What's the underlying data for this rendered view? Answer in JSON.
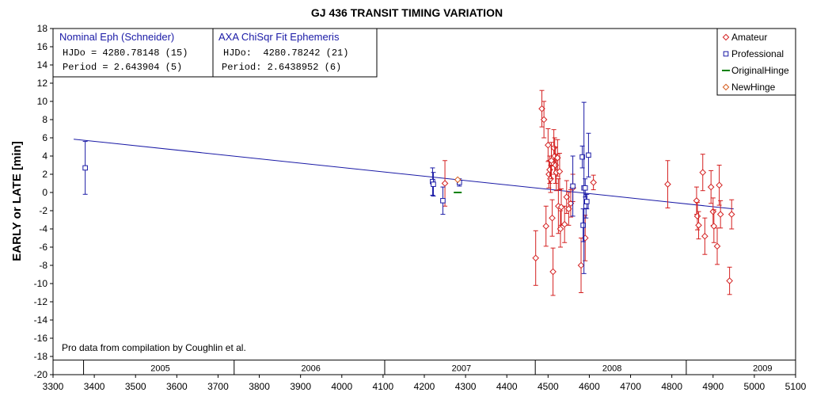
{
  "chart_data": {
    "type": "scatter",
    "title": "GJ 436 TRANSIT TIMING VARIATION",
    "ylabel": "EARLY or LATE [min]",
    "xlabel": "",
    "xlim": [
      3300,
      5100
    ],
    "ylim": [
      -20,
      18
    ],
    "x_ticks": [
      3300,
      3400,
      3500,
      3600,
      3700,
      3800,
      3900,
      4000,
      4100,
      4200,
      4300,
      4400,
      4500,
      4600,
      4700,
      4800,
      4900,
      5000,
      5100
    ],
    "y_ticks": [
      -20,
      -18,
      -16,
      -14,
      -12,
      -10,
      -8,
      -6,
      -4,
      -2,
      0,
      2,
      4,
      6,
      8,
      10,
      12,
      14,
      16,
      18
    ],
    "grid": false,
    "legend_position": "top-right",
    "ephemeris_boxes": [
      {
        "title": "Nominal Eph (Schneider)",
        "line1": "HJDo = 4280.78148 (15)",
        "line2": "Period = 2.643904 (5)"
      },
      {
        "title": "AXA ChiSqr Fit Ephemeris",
        "line1": "HJDo:  4280.78242 (21)",
        "line2": "Period: 2.6438952 (6)"
      }
    ],
    "note": "Pro data from compilation by Coughlin et al.",
    "year_strip": {
      "labels": [
        {
          "text": "2005",
          "x": 3560
        },
        {
          "text": "2006",
          "x": 3925
        },
        {
          "text": "2007",
          "x": 4290
        },
        {
          "text": "2008",
          "x": 4655
        },
        {
          "text": "2009",
          "x": 5020
        }
      ],
      "boundaries": [
        3374,
        3739,
        4104,
        4469,
        4835
      ]
    },
    "fit_line": {
      "name": "",
      "color": "#1a1aa6",
      "x": [
        3350,
        4950
      ],
      "y": [
        5.85,
        -1.8
      ]
    },
    "series": [
      {
        "name": "Amateur",
        "marker": "diamond",
        "color": "#d42020",
        "points": [
          {
            "x": 4250,
            "y": 1.0,
            "err": 2.5
          },
          {
            "x": 4470,
            "y": -7.2,
            "err": 3.0
          },
          {
            "x": 4485,
            "y": 9.2,
            "err": 2.0
          },
          {
            "x": 4490,
            "y": 8.0,
            "err": 2.0
          },
          {
            "x": 4495,
            "y": -3.7,
            "err": 2.2
          },
          {
            "x": 4500,
            "y": 5.2,
            "err": 1.8
          },
          {
            "x": 4502,
            "y": 2.0,
            "err": 1.5
          },
          {
            "x": 4504,
            "y": 2.5,
            "err": 1.5
          },
          {
            "x": 4506,
            "y": 1.5,
            "err": 1.5
          },
          {
            "x": 4508,
            "y": 3.5,
            "err": 2.0
          },
          {
            "x": 4510,
            "y": -2.8,
            "err": 2.0
          },
          {
            "x": 4512,
            "y": -8.7,
            "err": 2.6
          },
          {
            "x": 4514,
            "y": 4.9,
            "err": 2.0
          },
          {
            "x": 4516,
            "y": 4.0,
            "err": 2.0
          },
          {
            "x": 4518,
            "y": 3.0,
            "err": 2.0
          },
          {
            "x": 4520,
            "y": 2.2,
            "err": 2.0
          },
          {
            "x": 4523,
            "y": 3.8,
            "err": 2.0
          },
          {
            "x": 4525,
            "y": -1.5,
            "err": 3.0
          },
          {
            "x": 4528,
            "y": 2.3,
            "err": 2.0
          },
          {
            "x": 4530,
            "y": -4.0,
            "err": 2.0
          },
          {
            "x": 4532,
            "y": -1.6,
            "err": 2.0
          },
          {
            "x": 4540,
            "y": -3.5,
            "err": 2.0
          },
          {
            "x": 4545,
            "y": -0.5,
            "err": 1.8
          },
          {
            "x": 4550,
            "y": -1.8,
            "err": 1.8
          },
          {
            "x": 4555,
            "y": -1.2,
            "err": 1.5
          },
          {
            "x": 4560,
            "y": 0.5,
            "err": 1.5
          },
          {
            "x": 4580,
            "y": -8.0,
            "err": 3.0
          },
          {
            "x": 4590,
            "y": -5.0,
            "err": 2.5
          },
          {
            "x": 4610,
            "y": 1.1,
            "err": 0.8
          },
          {
            "x": 4790,
            "y": 0.9,
            "err": 2.6
          },
          {
            "x": 4860,
            "y": -0.9,
            "err": 1.5
          },
          {
            "x": 4862,
            "y": -2.6,
            "err": 1.5
          },
          {
            "x": 4865,
            "y": -3.6,
            "err": 1.5
          },
          {
            "x": 4875,
            "y": 2.2,
            "err": 2.0
          },
          {
            "x": 4880,
            "y": -4.8,
            "err": 2.0
          },
          {
            "x": 4895,
            "y": 0.6,
            "err": 1.8
          },
          {
            "x": 4900,
            "y": -2.1,
            "err": 1.5
          },
          {
            "x": 4902,
            "y": -3.7,
            "err": 1.8
          },
          {
            "x": 4910,
            "y": -5.9,
            "err": 2.0
          },
          {
            "x": 4915,
            "y": 0.8,
            "err": 2.2
          },
          {
            "x": 4918,
            "y": -2.4,
            "err": 1.5
          },
          {
            "x": 4940,
            "y": -9.7,
            "err": 1.5
          },
          {
            "x": 4945,
            "y": -2.4,
            "err": 1.6
          }
        ]
      },
      {
        "name": "Professional",
        "marker": "square",
        "color": "#1a1aa6",
        "points": [
          {
            "x": 3378,
            "y": 2.7,
            "err": 2.9
          },
          {
            "x": 4220,
            "y": 1.2,
            "err": 1.5
          },
          {
            "x": 4222,
            "y": 0.9,
            "err": 1.3
          },
          {
            "x": 4245,
            "y": -0.9,
            "err": 1.5
          },
          {
            "x": 4285,
            "y": 1.1,
            "err": 0.4
          },
          {
            "x": 4560,
            "y": 0.7,
            "err": 3.3
          },
          {
            "x": 4583,
            "y": 3.9,
            "err": 1.2
          },
          {
            "x": 4585,
            "y": -3.6,
            "err": 1.8
          },
          {
            "x": 4587,
            "y": 0.5,
            "err": 9.4
          },
          {
            "x": 4590,
            "y": 0.5,
            "err": 1.0
          },
          {
            "x": 4592,
            "y": -1.5,
            "err": 1.3
          },
          {
            "x": 4594,
            "y": -1.0,
            "err": 0.8
          },
          {
            "x": 4598,
            "y": 4.1,
            "err": 2.4
          }
        ]
      },
      {
        "name": "OriginalHinge",
        "marker": "dash",
        "color": "#008000",
        "points": [
          {
            "x": 4281,
            "y": 0.0,
            "err": 0
          }
        ]
      },
      {
        "name": "NewHinge",
        "marker": "diamond",
        "color": "#d45a1a",
        "points": [
          {
            "x": 4281,
            "y": 1.4,
            "err": 0
          }
        ]
      }
    ]
  }
}
